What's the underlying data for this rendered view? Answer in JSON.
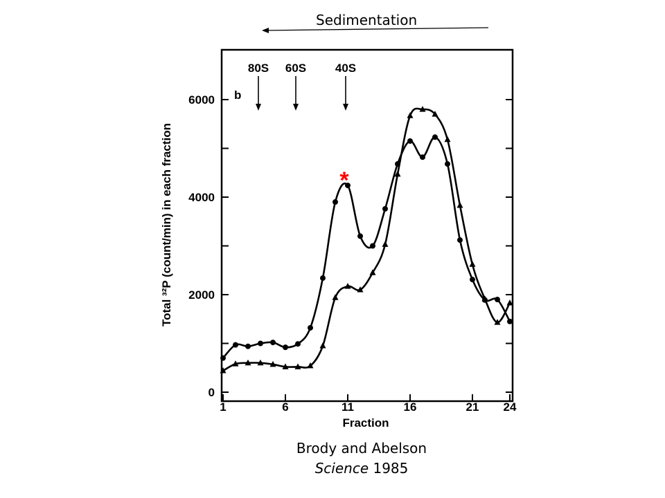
{
  "header": {
    "sedimentation_label": "Sedimentation"
  },
  "citation": {
    "authors": "Brody and Abelson",
    "journal": "Science",
    "year": "1985"
  },
  "colors": {
    "asterisk": "#ff0000",
    "ink": "#000000"
  },
  "chart_data": {
    "type": "line",
    "panel_label": "b",
    "xlabel": "Fraction",
    "ylabel": "Total ³²P (count/min) in each fraction",
    "xlim": [
      1,
      24
    ],
    "ylim": [
      0,
      7000
    ],
    "xticks": [
      "1",
      "6",
      "11",
      "16",
      "21",
      "24"
    ],
    "yticks": [
      "0",
      "2000",
      "4000",
      "6000"
    ],
    "markers": [
      {
        "label": "80S",
        "x": 4
      },
      {
        "label": "60S",
        "x": 7
      },
      {
        "label": "40S",
        "x": 11
      }
    ],
    "annotation": {
      "text": "*",
      "x": 11
    },
    "x": [
      1,
      2,
      3,
      4,
      5,
      6,
      7,
      8,
      9,
      10,
      11,
      12,
      13,
      14,
      15,
      16,
      17,
      18,
      19,
      20,
      21,
      22,
      23,
      24
    ],
    "series": [
      {
        "name": "circles",
        "marker": "circle",
        "values": [
          700,
          970,
          940,
          1000,
          1020,
          920,
          990,
          1320,
          2340,
          3900,
          4240,
          3200,
          3000,
          3760,
          4680,
          5150,
          4820,
          5230,
          4680,
          3120,
          2310,
          1890,
          1900,
          1450
        ]
      },
      {
        "name": "triangles",
        "marker": "triangle",
        "values": [
          440,
          580,
          600,
          600,
          570,
          520,
          520,
          540,
          950,
          1940,
          2170,
          2100,
          2450,
          3030,
          4470,
          5670,
          5800,
          5700,
          5180,
          3830,
          2620,
          1910,
          1430,
          1830
        ]
      }
    ]
  }
}
